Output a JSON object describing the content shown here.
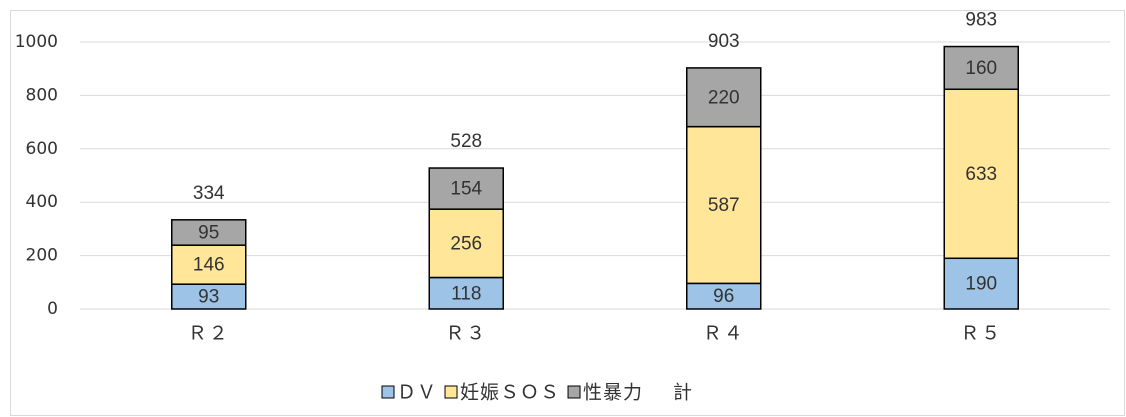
{
  "chart_data": {
    "type": "stacked_bar",
    "categories": [
      "Ｒ２",
      "Ｒ３",
      "Ｒ４",
      "Ｒ５"
    ],
    "series": [
      {
        "name": "ＤＶ",
        "color": "#9dc3e6",
        "values": [
          93,
          118,
          96,
          190
        ]
      },
      {
        "name": "妊娠ＳＯＳ",
        "color": "#ffe699",
        "values": [
          146,
          256,
          587,
          633
        ]
      },
      {
        "name": "性暴力",
        "color": "#a6a6a6",
        "values": [
          95,
          154,
          220,
          160
        ]
      }
    ],
    "total": {
      "name": "計",
      "values": [
        334,
        528,
        903,
        983
      ]
    },
    "ylim": [
      0,
      1000
    ],
    "yticks": [
      0,
      200,
      400,
      600,
      800,
      1000
    ],
    "grid": true,
    "legend": "bottom"
  }
}
